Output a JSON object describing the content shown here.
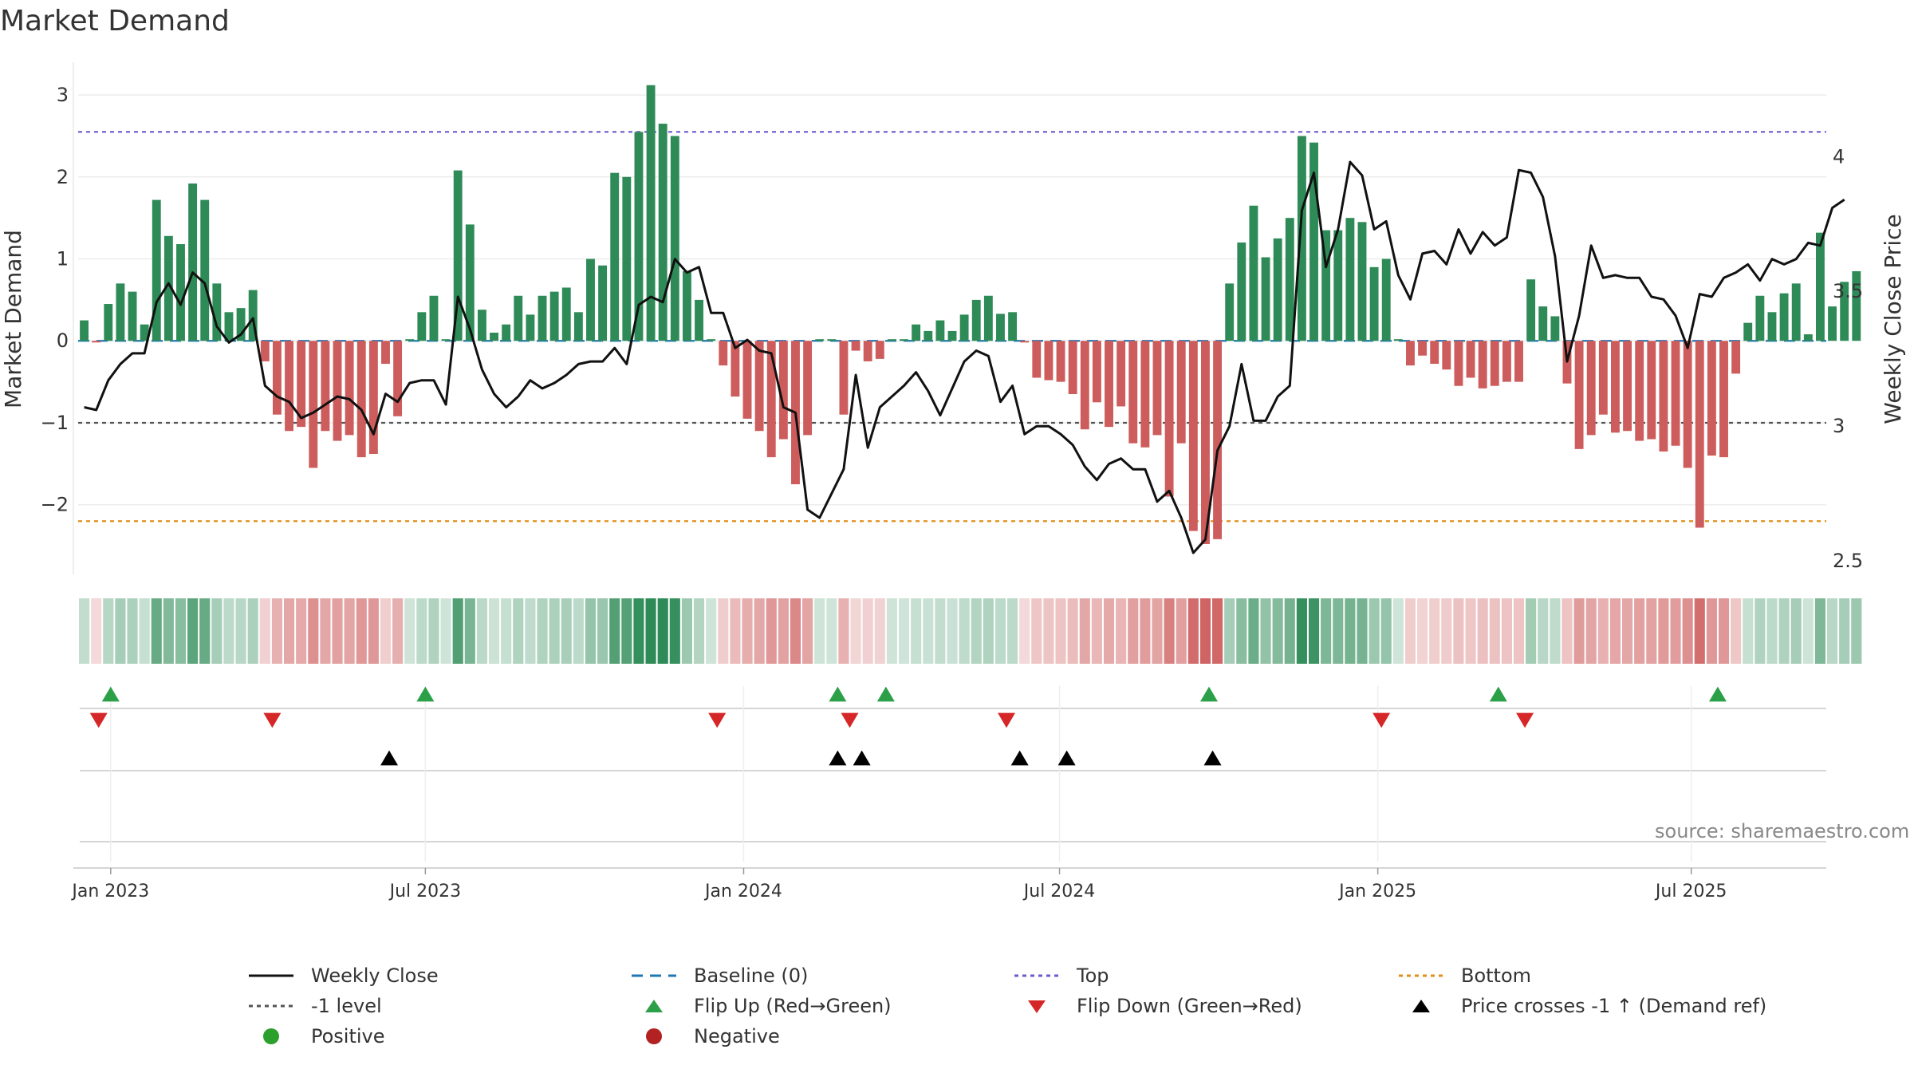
{
  "title": "Market Demand",
  "source_text": "source: sharemaestro.com",
  "colors": {
    "positive": "#2e8b57",
    "negative": "#cd5c5c",
    "close": "#111111",
    "baseline": "#1f77b4",
    "top": "#6a5acd",
    "bottom": "#e0901a",
    "minus1": "#555555",
    "flip_up": "#2ca048",
    "flip_down": "#d62728",
    "cross": "#000000",
    "dot_pos": "#2ca02c",
    "dot_neg": "#b22222"
  },
  "chart_data": {
    "type": "bar+line",
    "title": "Market Demand",
    "ylabel_left": "Market Demand",
    "ylabel_right": "Weekly Close Price",
    "left_ylim": [
      -2.85,
      3.4
    ],
    "left_yticks": [
      3,
      2,
      1,
      0,
      -1,
      -2
    ],
    "left_ytick_labels": [
      "3",
      "2",
      "1",
      "0",
      "−1",
      "−2"
    ],
    "right_ylim": [
      2.45,
      4.35
    ],
    "right_yticks": [
      4,
      3.5,
      3,
      2.5
    ],
    "right_ytick_labels": [
      "4",
      "3.5",
      "3",
      "2.5"
    ],
    "levels": {
      "top": 2.55,
      "minus1": -1.0,
      "bottom": -2.2,
      "baseline": 0
    },
    "x_start": "2022-12-23",
    "week_count": 145,
    "x_ticks": [
      "Jan 2023",
      "Jul 2023",
      "Jan 2024",
      "Jul 2024",
      "Jan 2025",
      "Jul 2025"
    ],
    "x_tick_weeks": [
      2.2,
      28.3,
      54.7,
      80.9,
      107.3,
      133.3
    ],
    "demand": [
      0.25,
      -0.02,
      0.45,
      0.7,
      0.6,
      0.2,
      1.72,
      1.28,
      1.18,
      1.92,
      1.72,
      0.7,
      0.35,
      0.4,
      0.62,
      -0.25,
      -0.9,
      -1.1,
      -1.05,
      -1.55,
      -1.1,
      -1.22,
      -1.15,
      -1.42,
      -1.38,
      -0.28,
      -0.92,
      0.02,
      0.35,
      0.55,
      0.02,
      2.08,
      1.42,
      0.38,
      0.1,
      0.2,
      0.55,
      0.32,
      0.55,
      0.6,
      0.65,
      0.35,
      1.0,
      0.92,
      2.05,
      2.0,
      2.55,
      3.12,
      2.65,
      2.5,
      0.85,
      0.5,
      0.02,
      -0.3,
      -0.68,
      -0.95,
      -1.1,
      -1.42,
      -1.2,
      -1.75,
      -1.15,
      0.02,
      0.02,
      -0.9,
      -0.12,
      -0.25,
      -0.22,
      0.02,
      0.02,
      0.2,
      0.12,
      0.25,
      0.12,
      0.32,
      0.5,
      0.55,
      0.33,
      0.35,
      -0.02,
      -0.45,
      -0.48,
      -0.5,
      -0.65,
      -1.08,
      -0.75,
      -1.05,
      -0.8,
      -1.25,
      -1.3,
      -1.15,
      -1.9,
      -1.25,
      -2.32,
      -2.48,
      -2.42,
      0.7,
      1.2,
      1.65,
      1.02,
      1.25,
      1.5,
      2.5,
      2.42,
      1.35,
      1.35,
      1.5,
      1.45,
      0.9,
      1.0,
      0.02,
      -0.3,
      -0.18,
      -0.28,
      -0.35,
      -0.55,
      -0.45,
      -0.58,
      -0.55,
      -0.5,
      -0.5,
      0.75,
      0.42,
      0.3,
      -0.52,
      -1.32,
      -1.15,
      -0.9,
      -1.12,
      -1.1,
      -1.22,
      -1.2,
      -1.35,
      -1.28,
      -1.55,
      -2.28,
      -1.4,
      -1.42,
      -0.4,
      0.22,
      0.55,
      0.35,
      0.58,
      0.7,
      0.08,
      1.32,
      0.42,
      0.72,
      0.85
    ],
    "close": [
      3.07,
      3.06,
      3.17,
      3.23,
      3.27,
      3.27,
      3.46,
      3.53,
      3.45,
      3.57,
      3.53,
      3.37,
      3.31,
      3.34,
      3.4,
      3.15,
      3.11,
      3.09,
      3.03,
      3.05,
      3.08,
      3.11,
      3.1,
      3.06,
      2.97,
      3.12,
      3.09,
      3.16,
      3.17,
      3.17,
      3.08,
      3.48,
      3.36,
      3.21,
      3.12,
      3.07,
      3.11,
      3.17,
      3.14,
      3.16,
      3.19,
      3.23,
      3.24,
      3.24,
      3.29,
      3.23,
      3.45,
      3.48,
      3.46,
      3.62,
      3.57,
      3.59,
      3.42,
      3.42,
      3.29,
      3.32,
      3.28,
      3.27,
      3.07,
      3.05,
      2.69,
      2.66,
      2.75,
      2.84,
      3.19,
      2.92,
      3.07,
      3.11,
      3.15,
      3.2,
      3.13,
      3.04,
      3.14,
      3.24,
      3.28,
      3.26,
      3.09,
      3.15,
      2.97,
      3.0,
      3.0,
      2.97,
      2.93,
      2.85,
      2.8,
      2.86,
      2.88,
      2.84,
      2.84,
      2.72,
      2.76,
      2.66,
      2.53,
      2.58,
      2.91,
      3.0,
      3.23,
      3.02,
      3.02,
      3.11,
      3.15,
      3.8,
      3.94,
      3.59,
      3.73,
      3.98,
      3.93,
      3.73,
      3.76,
      3.56,
      3.47,
      3.64,
      3.65,
      3.6,
      3.73,
      3.64,
      3.72,
      3.67,
      3.7,
      3.95,
      3.94,
      3.85,
      3.63,
      3.24,
      3.41,
      3.67,
      3.55,
      3.56,
      3.55,
      3.55,
      3.48,
      3.47,
      3.41,
      3.29,
      3.49,
      3.48,
      3.55,
      3.57,
      3.6,
      3.54,
      3.62,
      3.6,
      3.62,
      3.68,
      3.67,
      3.81,
      3.84
    ],
    "flip_up_weeks": [
      2.2,
      28.3,
      62.5,
      66.5,
      93.3,
      117.3,
      135.5
    ],
    "flip_down_weeks": [
      1.2,
      15.6,
      52.5,
      63.5,
      76.5,
      107.6,
      119.5
    ],
    "cross_weeks": [
      25.3,
      62.5,
      64.5,
      77.6,
      81.5,
      93.6
    ]
  },
  "legend": [
    {
      "label": "Weekly Close",
      "icon": "solid-line",
      "color": "#111111"
    },
    {
      "label": "Baseline (0)",
      "icon": "dashed-line",
      "color": "#1f77b4"
    },
    {
      "label": "Top",
      "icon": "dotted-line",
      "color": "#6a5acd"
    },
    {
      "label": "Bottom",
      "icon": "dotted-line",
      "color": "#e0901a"
    },
    {
      "label": "-1 level",
      "icon": "dotted-line",
      "color": "#555555"
    },
    {
      "label": "Flip Up (Red→Green)",
      "icon": "triangle-up",
      "color": "#2ca048"
    },
    {
      "label": "Flip Down (Green→Red)",
      "icon": "triangle-down",
      "color": "#d62728"
    },
    {
      "label": "Price crosses -1 ↑ (Demand ref)",
      "icon": "triangle-up",
      "color": "#000000"
    },
    {
      "label": "Positive",
      "icon": "circle",
      "color": "#2ca02c"
    },
    {
      "label": "Negative",
      "icon": "circle",
      "color": "#b22222"
    }
  ]
}
